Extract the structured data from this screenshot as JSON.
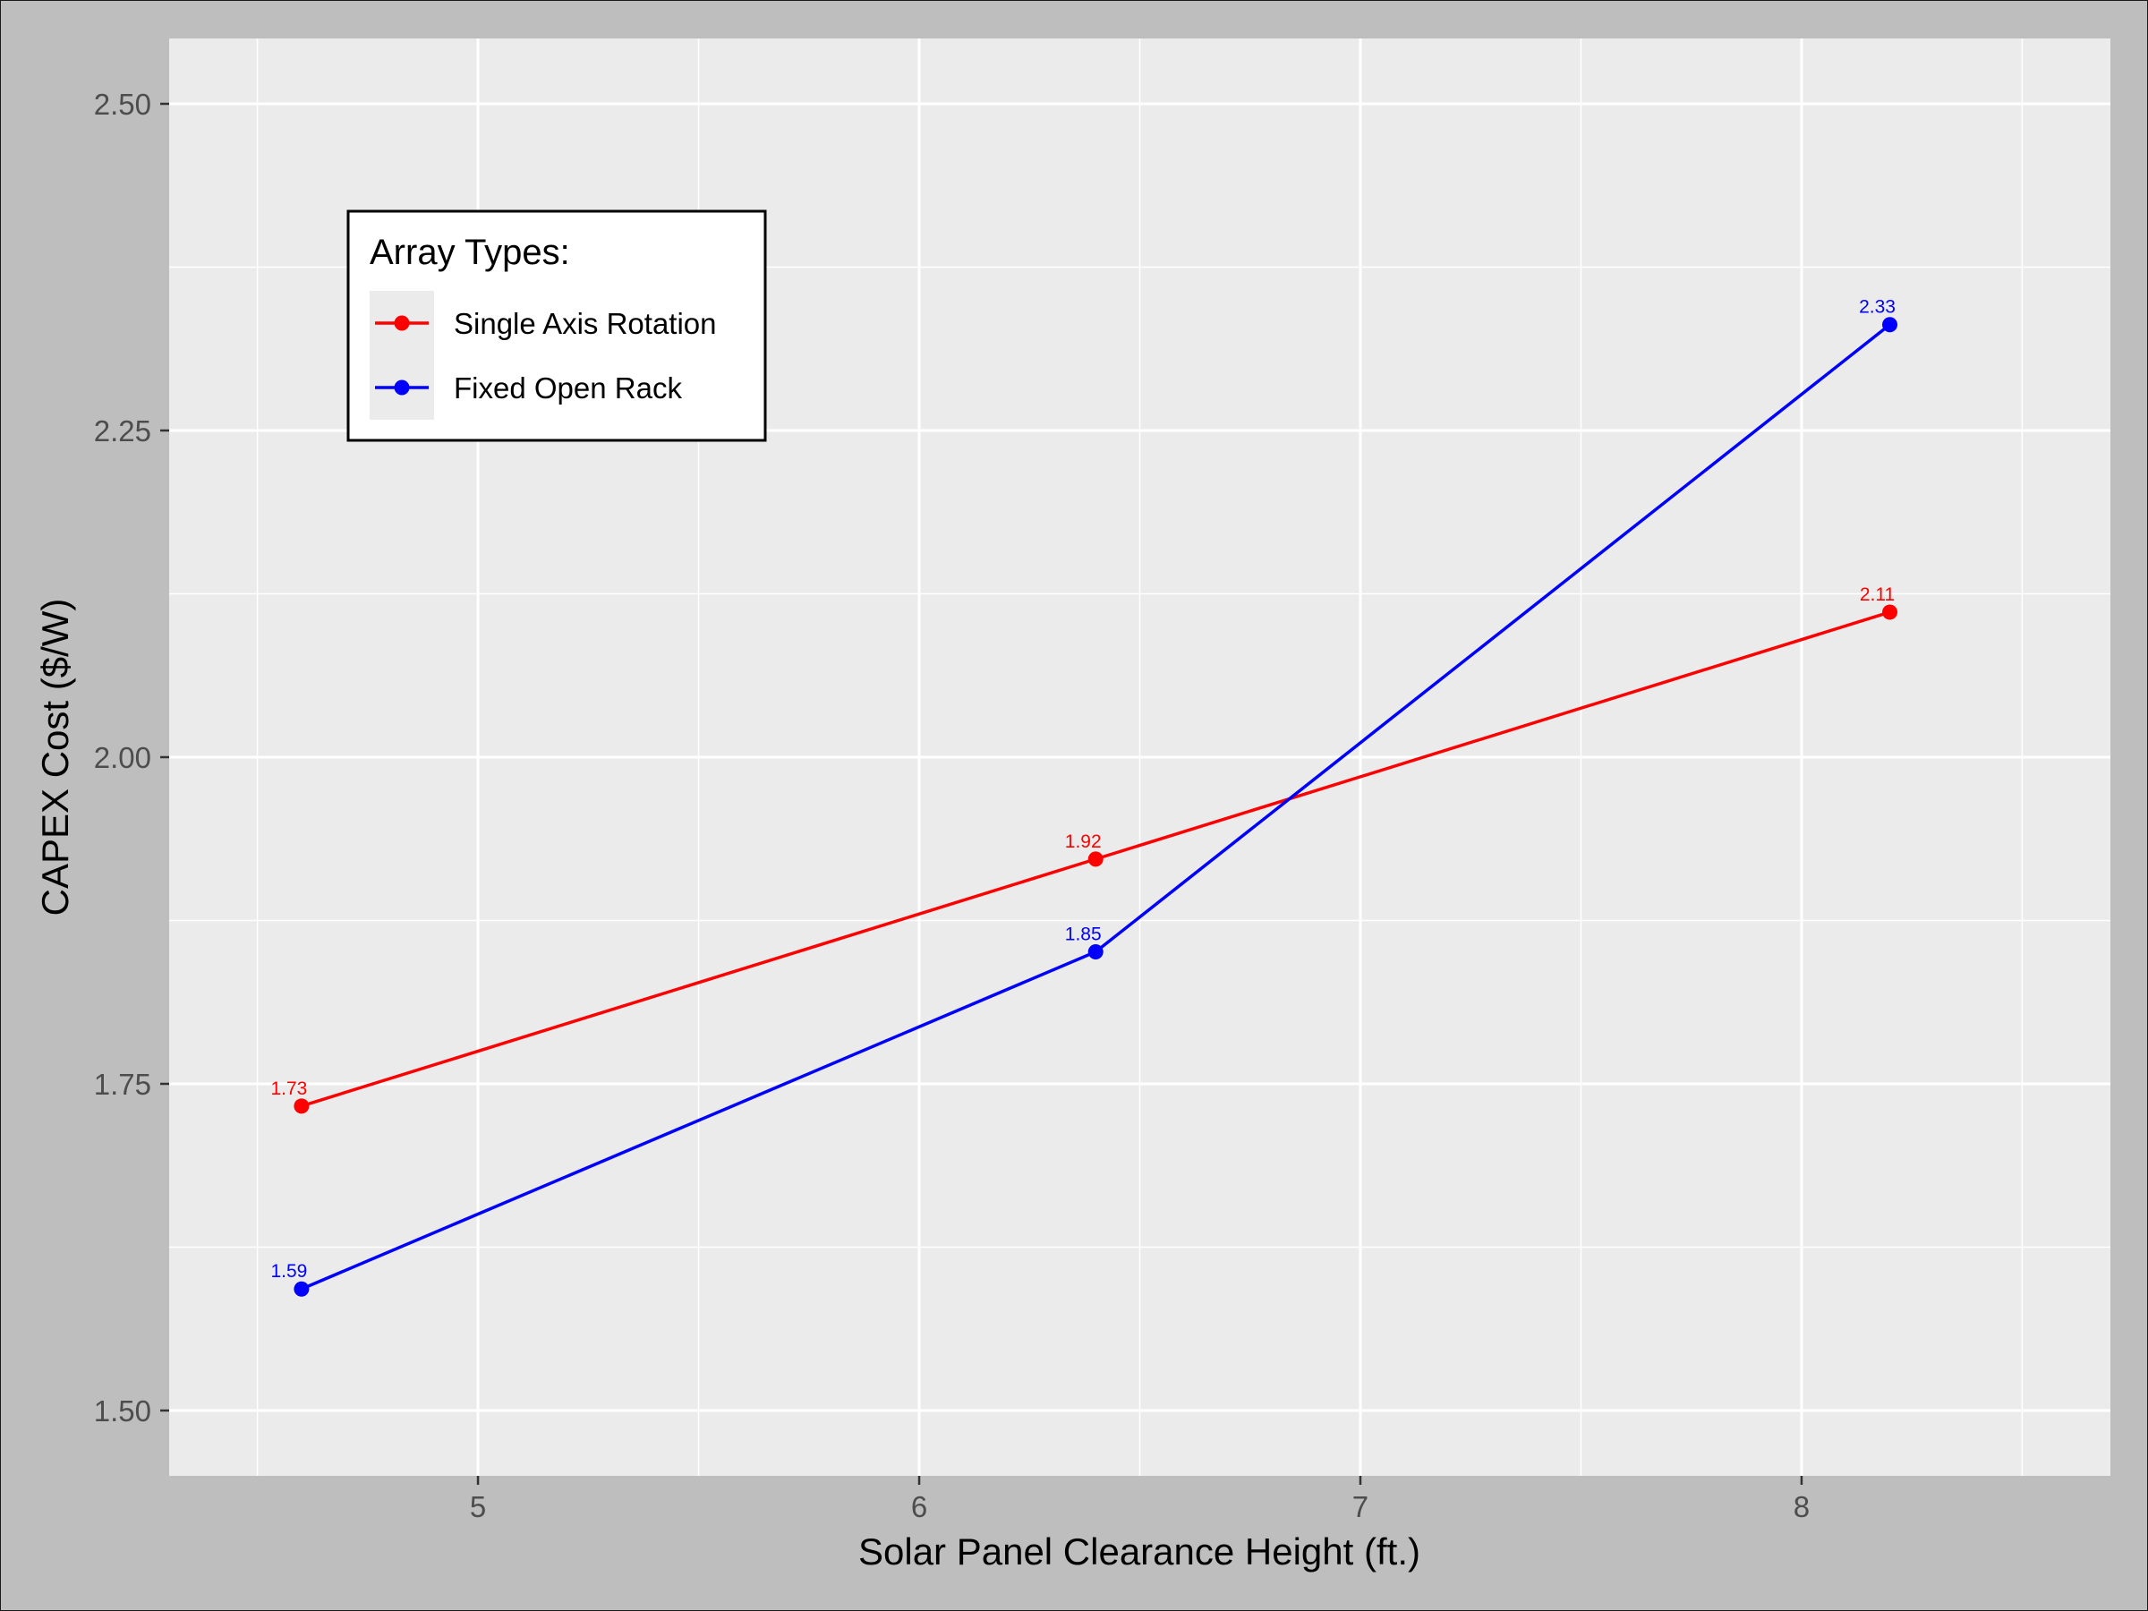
{
  "chart_data": {
    "type": "line",
    "title": "",
    "xlabel": "Solar Panel Clearance Height (ft.)",
    "ylabel": "CAPEX Cost ($/W)",
    "xlim": [
      4.3,
      8.7
    ],
    "ylim": [
      1.45,
      2.55
    ],
    "x_ticks": [
      5,
      6,
      7,
      8
    ],
    "x_tick_labels": [
      "5",
      "6",
      "7",
      "8"
    ],
    "y_ticks": [
      1.5,
      1.75,
      2.0,
      2.25,
      2.5
    ],
    "y_tick_labels": [
      "1.50",
      "1.75",
      "2.00",
      "2.25",
      "2.50"
    ],
    "grid": true,
    "legend": {
      "title": "Array Types:",
      "placement": "top-left"
    },
    "series": [
      {
        "name": "Single Axis Rotation",
        "color": "#ff0000",
        "x": [
          4.6,
          6.4,
          8.2
        ],
        "y": [
          1.733,
          1.922,
          2.111
        ],
        "labels": [
          "1.73",
          "1.92",
          "2.11"
        ]
      },
      {
        "name": "Fixed Open Rack",
        "color": "#0000ff",
        "x": [
          4.6,
          6.4,
          8.2
        ],
        "y": [
          1.593,
          1.851,
          2.331
        ],
        "labels": [
          "1.59",
          "1.85",
          "2.33"
        ]
      }
    ]
  }
}
